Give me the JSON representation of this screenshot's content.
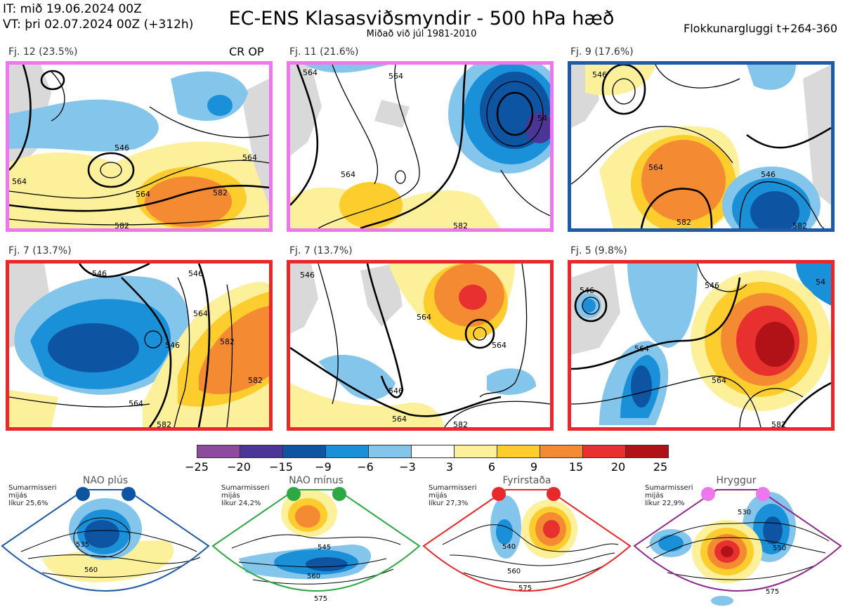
{
  "header": {
    "it": "IT: mið 19.06.2024 00Z",
    "vt": "VT: þri 02.07.2024 00Z  (+312h)",
    "title": "EC-ENS Klasasviðsmyndir - 500 hPa hæð",
    "subtitle": "Miðað við júl 1981-2010",
    "window": "Flokkunargluggi t+264-360"
  },
  "panels": [
    {
      "label": "Fj. 12 (23.5%)",
      "extra": "CR OP",
      "border": "#ee77ee",
      "contours": [
        "546",
        "564",
        "564",
        "582",
        "582",
        "564"
      ]
    },
    {
      "label": "Fj. 11 (21.6%)",
      "extra": "",
      "border": "#ee77ee",
      "contours": [
        "564",
        "564",
        "564",
        "582",
        "54"
      ]
    },
    {
      "label": "Fj. 9 (17.6%)",
      "extra": "",
      "border": "#1f5aa6",
      "contours": [
        "546",
        "564",
        "582",
        "546",
        "582"
      ]
    },
    {
      "label": "Fj. 7 (13.7%)",
      "extra": "",
      "border": "#e8282a",
      "contours": [
        "546",
        "546",
        "564",
        "582",
        "546",
        "564",
        "582",
        "582"
      ]
    },
    {
      "label": "Fj. 7 (13.7%)",
      "extra": "",
      "border": "#e8282a",
      "contours": [
        "546",
        "564",
        "564",
        "546",
        "564",
        "582"
      ]
    },
    {
      "label": "Fj. 5 (9.8%)",
      "extra": "",
      "border": "#e8282a",
      "contours": [
        "546",
        "546",
        "564",
        "564",
        "582",
        "54"
      ]
    }
  ],
  "colorbar": {
    "colors": [
      "#8e4a9e",
      "#4b3596",
      "#0d55a3",
      "#1a90d8",
      "#84c5ec",
      "#ffffff",
      "#fcf09a",
      "#fdcd2e",
      "#f48b32",
      "#e8302e",
      "#b01218"
    ],
    "ticks": [
      "−25",
      "−20",
      "−15",
      "−9",
      "−6",
      "−3",
      "3",
      "6",
      "9",
      "15",
      "20",
      "25"
    ]
  },
  "regimes": [
    {
      "name": "NAO plús",
      "season": "Sumarmisseri",
      "mean": "mijás",
      "prob": "líkur 25,6%",
      "color": "#1f5aa6",
      "contours": [
        "535",
        "560"
      ]
    },
    {
      "name": "NAO mínus",
      "season": "Sumarmisseri",
      "mean": "mijás",
      "prob": "líkur 24,2%",
      "color": "#2ea843",
      "contours": [
        "545",
        "560",
        "575"
      ]
    },
    {
      "name": "Fyrirstaða",
      "season": "Sumarmisseri",
      "mean": "mijás",
      "prob": "líkur 27,3%",
      "color": "#e8282a",
      "contours": [
        "540",
        "560",
        "575"
      ]
    },
    {
      "name": "Hryggur",
      "season": "Sumarmisseri",
      "mean": "mijás",
      "prob": "líkur 22,9%",
      "color": "#8e2a8e",
      "contours": [
        "530",
        "550",
        "575"
      ]
    }
  ]
}
